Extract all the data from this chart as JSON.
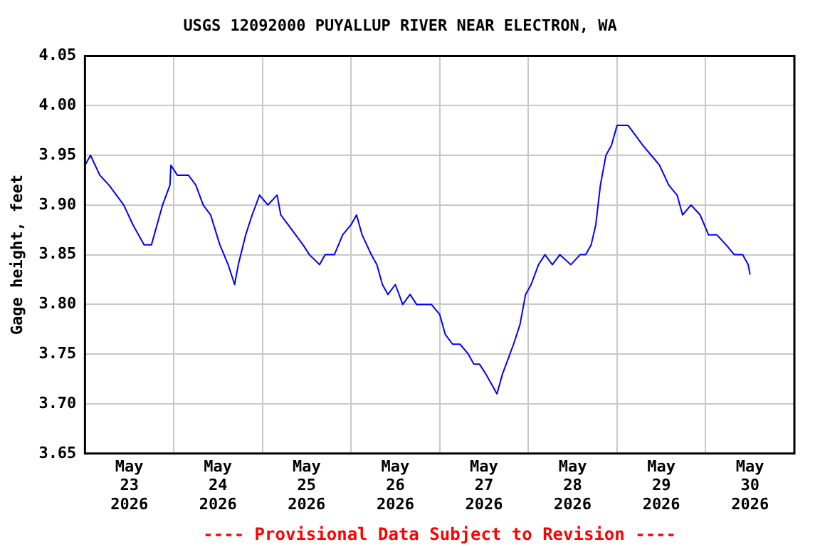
{
  "chart_data": {
    "type": "line",
    "title": "USGS 12092000 PUYALLUP RIVER NEAR ELECTRON, WA",
    "ylabel": "Gage height, feet",
    "annotations": [
      "---- Provisional Data Subject to Revision ----"
    ],
    "x": [
      "2026-05-23T00:00",
      "2026-05-23T01:30",
      "2026-05-23T04:00",
      "2026-05-23T06:30",
      "2026-05-23T10:30",
      "2026-05-23T13:00",
      "2026-05-23T16:00",
      "2026-05-23T18:00",
      "2026-05-23T19:30",
      "2026-05-23T21:00",
      "2026-05-23T23:00",
      "2026-05-23T23:15",
      "2026-05-24T01:00",
      "2026-05-24T04:00",
      "2026-05-24T06:00",
      "2026-05-24T08:00",
      "2026-05-24T10:00",
      "2026-05-24T12:30",
      "2026-05-24T14:45",
      "2026-05-24T16:30",
      "2026-05-24T17:30",
      "2026-05-24T19:30",
      "2026-05-24T21:15",
      "2026-05-24T23:15",
      "2026-05-25T01:30",
      "2026-05-25T04:00",
      "2026-05-25T05:00",
      "2026-05-25T07:00",
      "2026-05-25T09:00",
      "2026-05-25T11:00",
      "2026-05-25T12:45",
      "2026-05-25T15:30",
      "2026-05-25T17:00",
      "2026-05-25T19:30",
      "2026-05-25T21:45",
      "2026-05-26T00:00",
      "2026-05-26T01:30",
      "2026-05-26T03:00",
      "2026-05-26T05:30",
      "2026-05-26T07:00",
      "2026-05-26T08:30",
      "2026-05-26T10:00",
      "2026-05-26T12:00",
      "2026-05-26T14:00",
      "2026-05-26T16:00",
      "2026-05-26T17:45",
      "2026-05-26T19:45",
      "2026-05-26T21:45",
      "2026-05-27T00:00",
      "2026-05-27T01:30",
      "2026-05-27T03:30",
      "2026-05-27T05:30",
      "2026-05-27T07:45",
      "2026-05-27T09:15",
      "2026-05-27T10:45",
      "2026-05-27T12:30",
      "2026-05-27T14:00",
      "2026-05-27T15:30",
      "2026-05-27T17:00",
      "2026-05-27T19:00",
      "2026-05-27T20:00",
      "2026-05-27T21:45",
      "2026-05-27T23:15",
      "2026-05-28T00:45",
      "2026-05-28T02:45",
      "2026-05-28T04:30",
      "2026-05-28T06:30",
      "2026-05-28T08:30",
      "2026-05-28T11:30",
      "2026-05-28T14:00",
      "2026-05-28T15:30",
      "2026-05-28T17:00",
      "2026-05-28T18:15",
      "2026-05-28T19:30",
      "2026-05-28T21:00",
      "2026-05-28T22:30",
      "2026-05-29T00:00",
      "2026-05-29T01:30",
      "2026-05-29T03:00",
      "2026-05-29T05:00",
      "2026-05-29T07:00",
      "2026-05-29T09:15",
      "2026-05-29T11:30",
      "2026-05-29T14:00",
      "2026-05-29T16:15",
      "2026-05-29T17:45",
      "2026-05-29T20:00",
      "2026-05-29T22:30",
      "2026-05-30T00:45",
      "2026-05-30T03:00",
      "2026-05-30T05:30",
      "2026-05-30T07:45",
      "2026-05-30T10:00",
      "2026-05-30T11:30",
      "2026-05-30T12:00"
    ],
    "series": [
      {
        "color": "#0000ff",
        "values": [
          3.94,
          3.95,
          3.93,
          3.92,
          3.9,
          3.88,
          3.86,
          3.86,
          3.88,
          3.9,
          3.92,
          3.94,
          3.93,
          3.93,
          3.92,
          3.9,
          3.89,
          3.86,
          3.84,
          3.82,
          3.84,
          3.87,
          3.89,
          3.91,
          3.9,
          3.91,
          3.89,
          3.88,
          3.87,
          3.86,
          3.85,
          3.84,
          3.85,
          3.85,
          3.87,
          3.88,
          3.89,
          3.87,
          3.85,
          3.84,
          3.82,
          3.81,
          3.82,
          3.8,
          3.81,
          3.8,
          3.8,
          3.8,
          3.79,
          3.77,
          3.76,
          3.76,
          3.75,
          3.74,
          3.74,
          3.73,
          3.72,
          3.71,
          3.73,
          3.75,
          3.76,
          3.78,
          3.81,
          3.82,
          3.84,
          3.85,
          3.84,
          3.85,
          3.84,
          3.85,
          3.85,
          3.86,
          3.88,
          3.92,
          3.95,
          3.96,
          3.98,
          3.98,
          3.98,
          3.97,
          3.96,
          3.95,
          3.94,
          3.92,
          3.91,
          3.89,
          3.9,
          3.89,
          3.87,
          3.87,
          3.86,
          3.85,
          3.85,
          3.84,
          3.83
        ]
      }
    ],
    "xlim": [
      "2026-05-23T00:00",
      "2026-05-31T00:00"
    ],
    "xticks": [
      {
        "value": "2026-05-23T12:00",
        "label": "May\n23\n2026"
      },
      {
        "value": "2026-05-24T00:00",
        "label": null
      },
      {
        "value": "2026-05-24T12:00",
        "label": "May\n24\n2026"
      },
      {
        "value": "2026-05-25T00:00",
        "label": null
      },
      {
        "value": "2026-05-25T12:00",
        "label": "May\n25\n2026"
      },
      {
        "value": "2026-05-26T00:00",
        "label": null
      },
      {
        "value": "2026-05-26T12:00",
        "label": "May\n26\n2026"
      },
      {
        "value": "2026-05-27T00:00",
        "label": null
      },
      {
        "value": "2026-05-27T12:00",
        "label": "May\n27\n2026"
      },
      {
        "value": "2026-05-28T00:00",
        "label": null
      },
      {
        "value": "2026-05-28T12:00",
        "label": "May\n28\n2026"
      },
      {
        "value": "2026-05-29T00:00",
        "label": null
      },
      {
        "value": "2026-05-29T12:00",
        "label": "May\n29\n2026"
      },
      {
        "value": "2026-05-30T00:00",
        "label": null
      },
      {
        "value": "2026-05-30T12:00",
        "label": "May\n30\n2026"
      }
    ],
    "ylim": [
      3.65,
      4.05
    ],
    "yticks": [
      3.65,
      {
        "value": 3.7,
        "label": "3.70"
      },
      3.75,
      {
        "value": 3.8,
        "label": "3.80"
      },
      3.85,
      {
        "value": 3.9,
        "label": "3.90"
      },
      3.95,
      {
        "value": 4.0,
        "label": "4.00"
      },
      4.05
    ],
    "grid": true,
    "legend": false,
    "marker": "none",
    "line_style": "solid"
  }
}
